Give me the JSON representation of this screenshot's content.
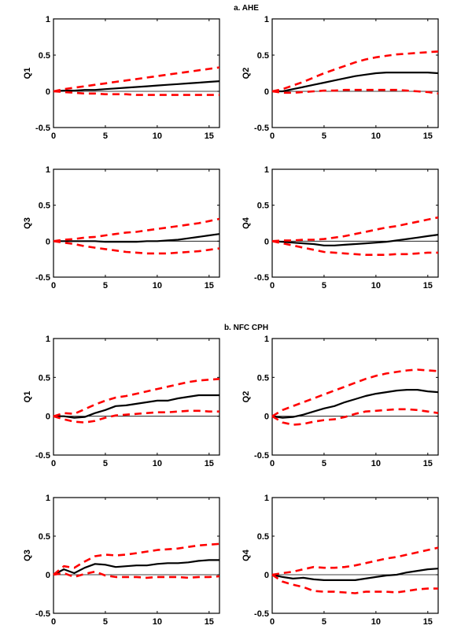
{
  "chart_data": [
    {
      "section": "a. AHE",
      "panel": "Q1",
      "type": "line",
      "ylabel": "Q1",
      "xlim": [
        0,
        16
      ],
      "ylim": [
        -0.5,
        1
      ],
      "xticks": [
        0,
        5,
        10,
        15
      ],
      "yticks": [
        -0.5,
        0,
        0.5,
        1
      ],
      "x": [
        0,
        1,
        2,
        3,
        4,
        5,
        6,
        7,
        8,
        9,
        10,
        11,
        12,
        13,
        14,
        15,
        16
      ],
      "series": [
        {
          "name": "response",
          "style": "solid-black",
          "values": [
            0,
            0.01,
            0.01,
            0.02,
            0.02,
            0.03,
            0.04,
            0.05,
            0.06,
            0.07,
            0.08,
            0.09,
            0.1,
            0.11,
            0.12,
            0.13,
            0.14
          ]
        },
        {
          "name": "upper band",
          "style": "dashed-red",
          "values": [
            0,
            0.03,
            0.05,
            0.07,
            0.09,
            0.11,
            0.13,
            0.15,
            0.17,
            0.19,
            0.21,
            0.23,
            0.25,
            0.27,
            0.29,
            0.31,
            0.33
          ]
        },
        {
          "name": "lower band",
          "style": "dashed-red",
          "values": [
            0,
            -0.01,
            -0.02,
            -0.03,
            -0.03,
            -0.04,
            -0.04,
            -0.04,
            -0.05,
            -0.05,
            -0.05,
            -0.05,
            -0.05,
            -0.05,
            -0.05,
            -0.05,
            -0.05
          ]
        }
      ]
    },
    {
      "section": "a. AHE",
      "panel": "Q2",
      "type": "line",
      "ylabel": "Q2",
      "xlim": [
        0,
        16
      ],
      "ylim": [
        -0.5,
        1
      ],
      "xticks": [
        0,
        5,
        10,
        15
      ],
      "yticks": [
        -0.5,
        0,
        0.5,
        1
      ],
      "x": [
        0,
        1,
        2,
        3,
        4,
        5,
        6,
        7,
        8,
        9,
        10,
        11,
        12,
        13,
        14,
        15,
        16
      ],
      "series": [
        {
          "name": "response",
          "style": "solid-black",
          "values": [
            0,
            0,
            0.03,
            0.06,
            0.09,
            0.12,
            0.15,
            0.18,
            0.21,
            0.23,
            0.25,
            0.26,
            0.26,
            0.26,
            0.26,
            0.26,
            0.25
          ]
        },
        {
          "name": "upper band",
          "style": "dashed-red",
          "values": [
            0,
            0.03,
            0.08,
            0.13,
            0.19,
            0.25,
            0.3,
            0.35,
            0.4,
            0.44,
            0.47,
            0.49,
            0.51,
            0.52,
            0.53,
            0.54,
            0.55
          ]
        },
        {
          "name": "lower band",
          "style": "dashed-red",
          "values": [
            0,
            -0.02,
            -0.02,
            -0.01,
            0,
            0.01,
            0.01,
            0.02,
            0.02,
            0.02,
            0.02,
            0.02,
            0.02,
            0.01,
            0,
            -0.01,
            -0.03
          ]
        }
      ]
    },
    {
      "section": "a. AHE",
      "panel": "Q3",
      "type": "line",
      "ylabel": "Q3",
      "xlim": [
        0,
        16
      ],
      "ylim": [
        -0.5,
        1
      ],
      "xticks": [
        0,
        5,
        10,
        15
      ],
      "yticks": [
        -0.5,
        0,
        0.5,
        1
      ],
      "x": [
        0,
        1,
        2,
        3,
        4,
        5,
        6,
        7,
        8,
        9,
        10,
        11,
        12,
        13,
        14,
        15,
        16
      ],
      "series": [
        {
          "name": "response",
          "style": "solid-black",
          "values": [
            0,
            0,
            0,
            0,
            0,
            -0.01,
            -0.01,
            -0.01,
            -0.01,
            0,
            0,
            0.01,
            0.02,
            0.04,
            0.06,
            0.08,
            0.1
          ]
        },
        {
          "name": "upper band",
          "style": "dashed-red",
          "values": [
            0,
            0.02,
            0.03,
            0.05,
            0.06,
            0.08,
            0.1,
            0.12,
            0.13,
            0.15,
            0.17,
            0.19,
            0.21,
            0.23,
            0.25,
            0.28,
            0.31
          ]
        },
        {
          "name": "lower band",
          "style": "dashed-red",
          "values": [
            0,
            -0.02,
            -0.04,
            -0.07,
            -0.09,
            -0.11,
            -0.13,
            -0.15,
            -0.16,
            -0.17,
            -0.17,
            -0.17,
            -0.16,
            -0.15,
            -0.14,
            -0.12,
            -0.1
          ]
        }
      ]
    },
    {
      "section": "a. AHE",
      "panel": "Q4",
      "type": "line",
      "ylabel": "Q4",
      "xlim": [
        0,
        16
      ],
      "ylim": [
        -0.5,
        1
      ],
      "xticks": [
        0,
        5,
        10,
        15
      ],
      "yticks": [
        -0.5,
        0,
        0.5,
        1
      ],
      "x": [
        0,
        1,
        2,
        3,
        4,
        5,
        6,
        7,
        8,
        9,
        10,
        11,
        12,
        13,
        14,
        15,
        16
      ],
      "series": [
        {
          "name": "response",
          "style": "solid-black",
          "values": [
            0,
            -0.01,
            -0.02,
            -0.03,
            -0.04,
            -0.06,
            -0.06,
            -0.05,
            -0.04,
            -0.03,
            -0.02,
            -0.01,
            0.01,
            0.03,
            0.05,
            0.07,
            0.09
          ]
        },
        {
          "name": "upper band",
          "style": "dashed-red",
          "values": [
            0,
            0.01,
            0.01,
            0.02,
            0.02,
            0.03,
            0.05,
            0.07,
            0.1,
            0.13,
            0.16,
            0.19,
            0.21,
            0.24,
            0.27,
            0.3,
            0.33
          ]
        },
        {
          "name": "lower band",
          "style": "dashed-red",
          "values": [
            0,
            -0.03,
            -0.06,
            -0.09,
            -0.12,
            -0.15,
            -0.16,
            -0.17,
            -0.18,
            -0.19,
            -0.19,
            -0.19,
            -0.18,
            -0.18,
            -0.17,
            -0.16,
            -0.16
          ]
        }
      ]
    },
    {
      "section": "b. NFC CPH",
      "panel": "Q1",
      "type": "line",
      "ylabel": "Q1",
      "xlim": [
        0,
        16
      ],
      "ylim": [
        -0.5,
        1
      ],
      "xticks": [
        0,
        5,
        10,
        15
      ],
      "yticks": [
        -0.5,
        0,
        0.5,
        1
      ],
      "x": [
        0,
        1,
        2,
        3,
        4,
        5,
        6,
        7,
        8,
        9,
        10,
        11,
        12,
        13,
        14,
        15,
        16
      ],
      "series": [
        {
          "name": "response",
          "style": "solid-black",
          "values": [
            0,
            0,
            -0.02,
            -0.01,
            0.04,
            0.08,
            0.13,
            0.14,
            0.16,
            0.18,
            0.2,
            0.2,
            0.23,
            0.25,
            0.27,
            0.27,
            0.27
          ]
        },
        {
          "name": "upper band",
          "style": "dashed-red",
          "values": [
            0,
            0.04,
            0.03,
            0.09,
            0.15,
            0.2,
            0.24,
            0.26,
            0.29,
            0.32,
            0.35,
            0.38,
            0.41,
            0.44,
            0.46,
            0.47,
            0.48
          ]
        },
        {
          "name": "lower band",
          "style": "dashed-red",
          "values": [
            0,
            -0.04,
            -0.07,
            -0.08,
            -0.06,
            -0.02,
            0.01,
            0.02,
            0.03,
            0.04,
            0.05,
            0.05,
            0.06,
            0.07,
            0.07,
            0.06,
            0.06
          ]
        }
      ]
    },
    {
      "section": "b. NFC CPH",
      "panel": "Q2",
      "type": "line",
      "ylabel": "Q2",
      "xlim": [
        0,
        16
      ],
      "ylim": [
        -0.5,
        1
      ],
      "xticks": [
        0,
        5,
        10,
        15
      ],
      "yticks": [
        -0.5,
        0,
        0.5,
        1
      ],
      "x": [
        0,
        1,
        2,
        3,
        4,
        5,
        6,
        7,
        8,
        9,
        10,
        11,
        12,
        13,
        14,
        15,
        16
      ],
      "series": [
        {
          "name": "response",
          "style": "solid-black",
          "values": [
            0,
            -0.02,
            -0.01,
            0.02,
            0.06,
            0.1,
            0.13,
            0.18,
            0.22,
            0.26,
            0.29,
            0.31,
            0.33,
            0.34,
            0.34,
            0.32,
            0.31
          ]
        },
        {
          "name": "upper band",
          "style": "dashed-red",
          "values": [
            0,
            0.08,
            0.13,
            0.18,
            0.23,
            0.28,
            0.33,
            0.38,
            0.43,
            0.48,
            0.52,
            0.55,
            0.57,
            0.59,
            0.6,
            0.59,
            0.58
          ]
        },
        {
          "name": "lower band",
          "style": "dashed-red",
          "values": [
            0,
            -0.08,
            -0.11,
            -0.1,
            -0.07,
            -0.05,
            -0.04,
            -0.01,
            0.03,
            0.06,
            0.07,
            0.08,
            0.09,
            0.09,
            0.08,
            0.06,
            0.04
          ]
        }
      ]
    },
    {
      "section": "b. NFC CPH",
      "panel": "Q3",
      "type": "line",
      "ylabel": "Q3",
      "xlim": [
        0,
        16
      ],
      "ylim": [
        -0.5,
        1
      ],
      "xticks": [
        0,
        5,
        10,
        15
      ],
      "yticks": [
        -0.5,
        0,
        0.5,
        1
      ],
      "x": [
        0,
        1,
        2,
        3,
        4,
        5,
        6,
        7,
        8,
        9,
        10,
        11,
        12,
        13,
        14,
        15,
        16
      ],
      "series": [
        {
          "name": "response",
          "style": "solid-black",
          "values": [
            0,
            0.07,
            0.02,
            0.09,
            0.14,
            0.13,
            0.1,
            0.11,
            0.12,
            0.12,
            0.14,
            0.15,
            0.15,
            0.16,
            0.18,
            0.19,
            0.19
          ]
        },
        {
          "name": "upper band",
          "style": "dashed-red",
          "values": [
            0,
            0.11,
            0.09,
            0.17,
            0.24,
            0.26,
            0.25,
            0.26,
            0.28,
            0.3,
            0.32,
            0.33,
            0.34,
            0.36,
            0.38,
            0.39,
            0.4
          ]
        },
        {
          "name": "lower band",
          "style": "dashed-red",
          "values": [
            0,
            0.02,
            -0.03,
            0.01,
            0.04,
            -0.01,
            -0.03,
            -0.03,
            -0.03,
            -0.04,
            -0.03,
            -0.03,
            -0.03,
            -0.04,
            -0.03,
            -0.03,
            -0.02
          ]
        }
      ]
    },
    {
      "section": "b. NFC CPH",
      "panel": "Q4",
      "type": "line",
      "ylabel": "Q4",
      "xlim": [
        0,
        16
      ],
      "ylim": [
        -0.5,
        1
      ],
      "xticks": [
        0,
        5,
        10,
        15
      ],
      "yticks": [
        -0.5,
        0,
        0.5,
        1
      ],
      "x": [
        0,
        1,
        2,
        3,
        4,
        5,
        6,
        7,
        8,
        9,
        10,
        11,
        12,
        13,
        14,
        15,
        16
      ],
      "series": [
        {
          "name": "response",
          "style": "solid-black",
          "values": [
            0,
            -0.03,
            -0.05,
            -0.04,
            -0.06,
            -0.07,
            -0.07,
            -0.07,
            -0.07,
            -0.05,
            -0.03,
            -0.01,
            0,
            0.03,
            0.05,
            0.07,
            0.08
          ]
        },
        {
          "name": "upper band",
          "style": "dashed-red",
          "values": [
            0,
            0.02,
            0.04,
            0.07,
            0.1,
            0.09,
            0.09,
            0.1,
            0.12,
            0.15,
            0.18,
            0.21,
            0.23,
            0.26,
            0.29,
            0.32,
            0.35
          ]
        },
        {
          "name": "lower band",
          "style": "dashed-red",
          "values": [
            0,
            -0.09,
            -0.13,
            -0.16,
            -0.21,
            -0.22,
            -0.22,
            -0.23,
            -0.24,
            -0.22,
            -0.22,
            -0.22,
            -0.23,
            -0.21,
            -0.19,
            -0.18,
            -0.18
          ]
        }
      ]
    }
  ],
  "section_titles": [
    "a. AHE",
    "b. NFC CPH"
  ],
  "colors": {
    "response": "#000000",
    "band": "#ff0000",
    "axis": "#000000",
    "zero_line": "#000000"
  }
}
